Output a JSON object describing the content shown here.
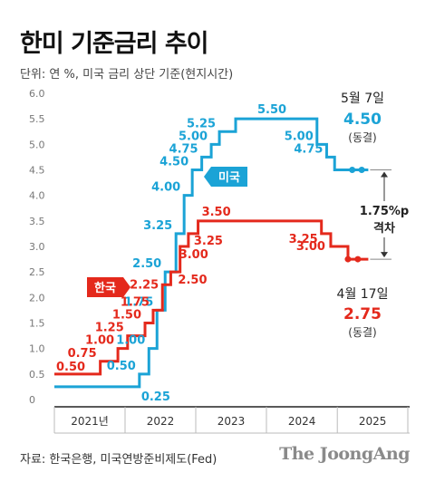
{
  "title": "한미 기준금리 추이",
  "unit_note": "단위: 연 %, 미국 금리 상단 기준(현지시간)",
  "source": "자료: 한국은행, 미국연방준비제도(Fed)",
  "brand": "The JoongAng",
  "chart_data": {
    "type": "line",
    "step": true,
    "ylim": [
      0,
      6.0
    ],
    "yticks": [
      "0",
      "0.5",
      "1.0",
      "1.5",
      "2.0",
      "2.5",
      "3.0",
      "3.5",
      "4.0",
      "4.5",
      "5.0",
      "5.5",
      "6.0"
    ],
    "xlim": [
      "2021-01-01",
      "2025-12-31"
    ],
    "x_categories": [
      "2021년",
      "2022",
      "2023",
      "2024",
      "2025"
    ],
    "grid": false,
    "series": [
      {
        "name": "미국",
        "color": "#1ba3d6",
        "x": [
          "2021-01-01",
          "2022-03-16",
          "2022-05-04",
          "2022-06-15",
          "2022-07-27",
          "2022-09-21",
          "2022-11-02",
          "2022-12-14",
          "2023-02-01",
          "2023-03-22",
          "2023-05-03",
          "2023-07-26",
          "2024-09-18",
          "2024-11-07",
          "2024-12-18",
          "2025-05-07"
        ],
        "y": [
          0.25,
          0.5,
          1.0,
          1.75,
          2.5,
          3.25,
          4.0,
          4.5,
          4.75,
          5.0,
          5.25,
          5.5,
          5.0,
          4.75,
          4.5,
          4.5
        ],
        "labels": [
          "0.25",
          "0.50",
          "1.00",
          "1.75",
          "2.50",
          "3.25",
          "4.00",
          "4.50",
          "4.75",
          "5.00",
          "5.25",
          "5.50",
          "5.00",
          "4.75",
          "",
          ""
        ]
      },
      {
        "name": "한국",
        "color": "#e4291c",
        "x": [
          "2021-01-01",
          "2021-08-26",
          "2021-11-25",
          "2022-01-14",
          "2022-04-14",
          "2022-05-26",
          "2022-07-13",
          "2022-08-25",
          "2022-10-12",
          "2022-11-24",
          "2023-01-13",
          "2024-10-11",
          "2024-11-28",
          "2025-02-25",
          "2025-04-17"
        ],
        "y": [
          0.5,
          0.75,
          1.0,
          1.25,
          1.5,
          1.75,
          2.25,
          2.5,
          3.0,
          3.25,
          3.5,
          3.25,
          3.0,
          2.75,
          2.75
        ],
        "labels": [
          "0.50",
          "0.75",
          "1.00",
          "1.25",
          "1.50",
          "1.75",
          "2.25",
          "2.50",
          "3.00",
          "3.25",
          "3.50",
          "3.25",
          "3.00",
          "",
          ""
        ]
      }
    ],
    "annotations": {
      "us_latest_date": "5월 7일",
      "us_latest_value": "4.50",
      "us_latest_note": "(동결)",
      "kr_latest_date": "4월 17일",
      "kr_latest_value": "2.75",
      "kr_latest_note": "(동결)",
      "gap_value": "1.75%p",
      "gap_label": "격차"
    }
  }
}
